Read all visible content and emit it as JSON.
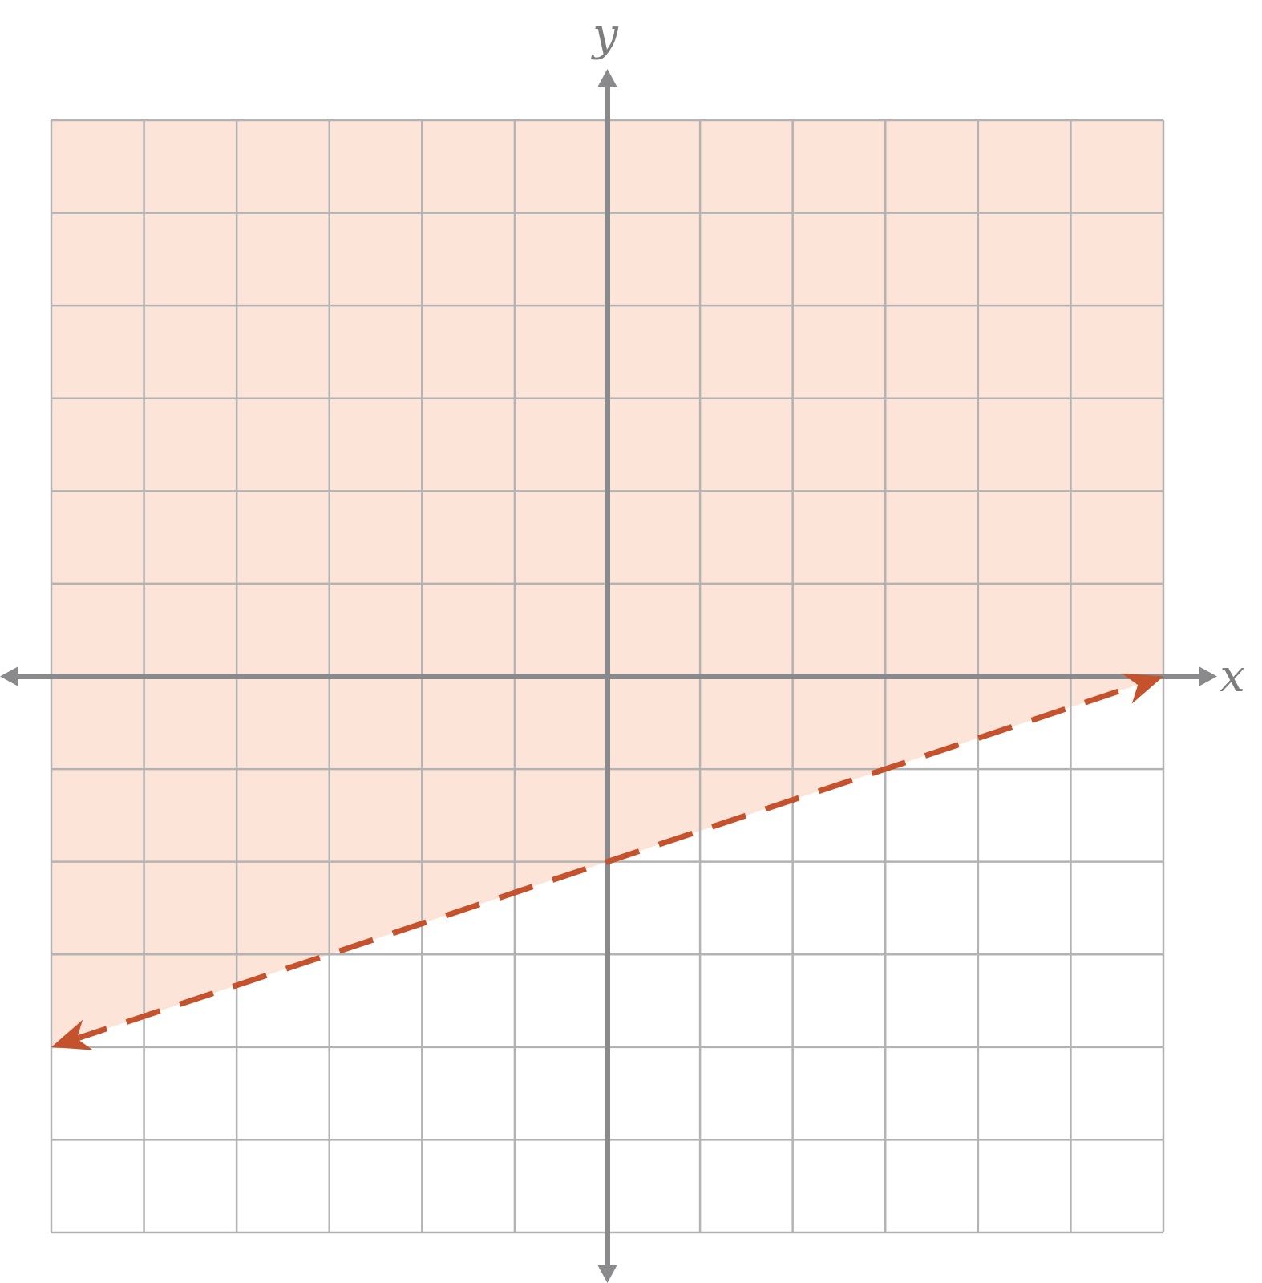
{
  "chart_data": {
    "type": "line",
    "title": "",
    "xlabel": "x",
    "ylabel": "y",
    "xlim": [
      -6,
      6
    ],
    "ylim": [
      -6,
      6
    ],
    "grid": true,
    "tick_labels": false,
    "boundary_line": {
      "style": "dashed",
      "color": "#c4522c",
      "points": [
        [
          -6,
          -4
        ],
        [
          6,
          0
        ]
      ],
      "slope": 0.3333,
      "y_intercept": -2,
      "arrows": "both"
    },
    "shaded_region": {
      "side": "above",
      "color": "#fce4d8"
    },
    "colors": {
      "grid": "#b3b3b3",
      "axes": "#8a8a8c"
    }
  }
}
